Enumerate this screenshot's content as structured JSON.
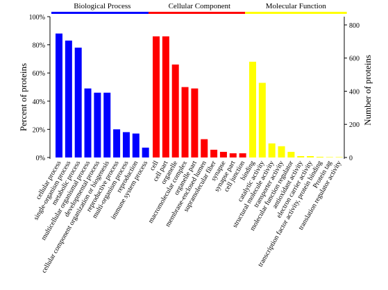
{
  "chart_data": {
    "type": "bar",
    "ylabel_left": "Percent of proteins",
    "ylabel_right": "Number of proteins",
    "left_axis": {
      "ylim": [
        0,
        100
      ],
      "ticks": [
        "0%",
        "20%",
        "40%",
        "60%",
        "80%",
        "100%"
      ]
    },
    "right_axis": {
      "ylim": [
        0,
        850
      ],
      "ticks": [
        "0",
        "200",
        "400",
        "600",
        "800"
      ]
    },
    "groups": [
      {
        "name": "Biological Process",
        "color": "#0000ff",
        "categories": [
          "cellular process",
          "single-organism process",
          "metabolic process",
          "multicellular organismal process",
          "developmental process",
          "cellular component organization or biogenesis",
          "reproductive process",
          "multi-organism process",
          "reproduction",
          "immune system process"
        ],
        "values": [
          88,
          83,
          78,
          49,
          46,
          46,
          20,
          18,
          17,
          7
        ]
      },
      {
        "name": "Cellular Component",
        "color": "#ff0000",
        "categories": [
          "cell",
          "cell part",
          "organelle",
          "macromolecular complex",
          "organelle part",
          "membrane-enclosed lumen",
          "supramolecular fiber",
          "synapse",
          "synapse part",
          "cell junction"
        ],
        "values": [
          86,
          86,
          66,
          50,
          49,
          13,
          5.5,
          4,
          3,
          3
        ]
      },
      {
        "name": "Molecular Function",
        "color": "#ffff00",
        "categories": [
          "binding",
          "catalytic activity",
          "structural molecule activity",
          "transporter activity",
          "molecular function regulator",
          "antioxidant activity",
          "electron carrier activity",
          "transcription factor activity, protein binding",
          "Protein tag",
          "translation regulator activity"
        ],
        "values": [
          68,
          53,
          10,
          8,
          4,
          1,
          1,
          0.5,
          0.3,
          0.3
        ]
      }
    ]
  }
}
